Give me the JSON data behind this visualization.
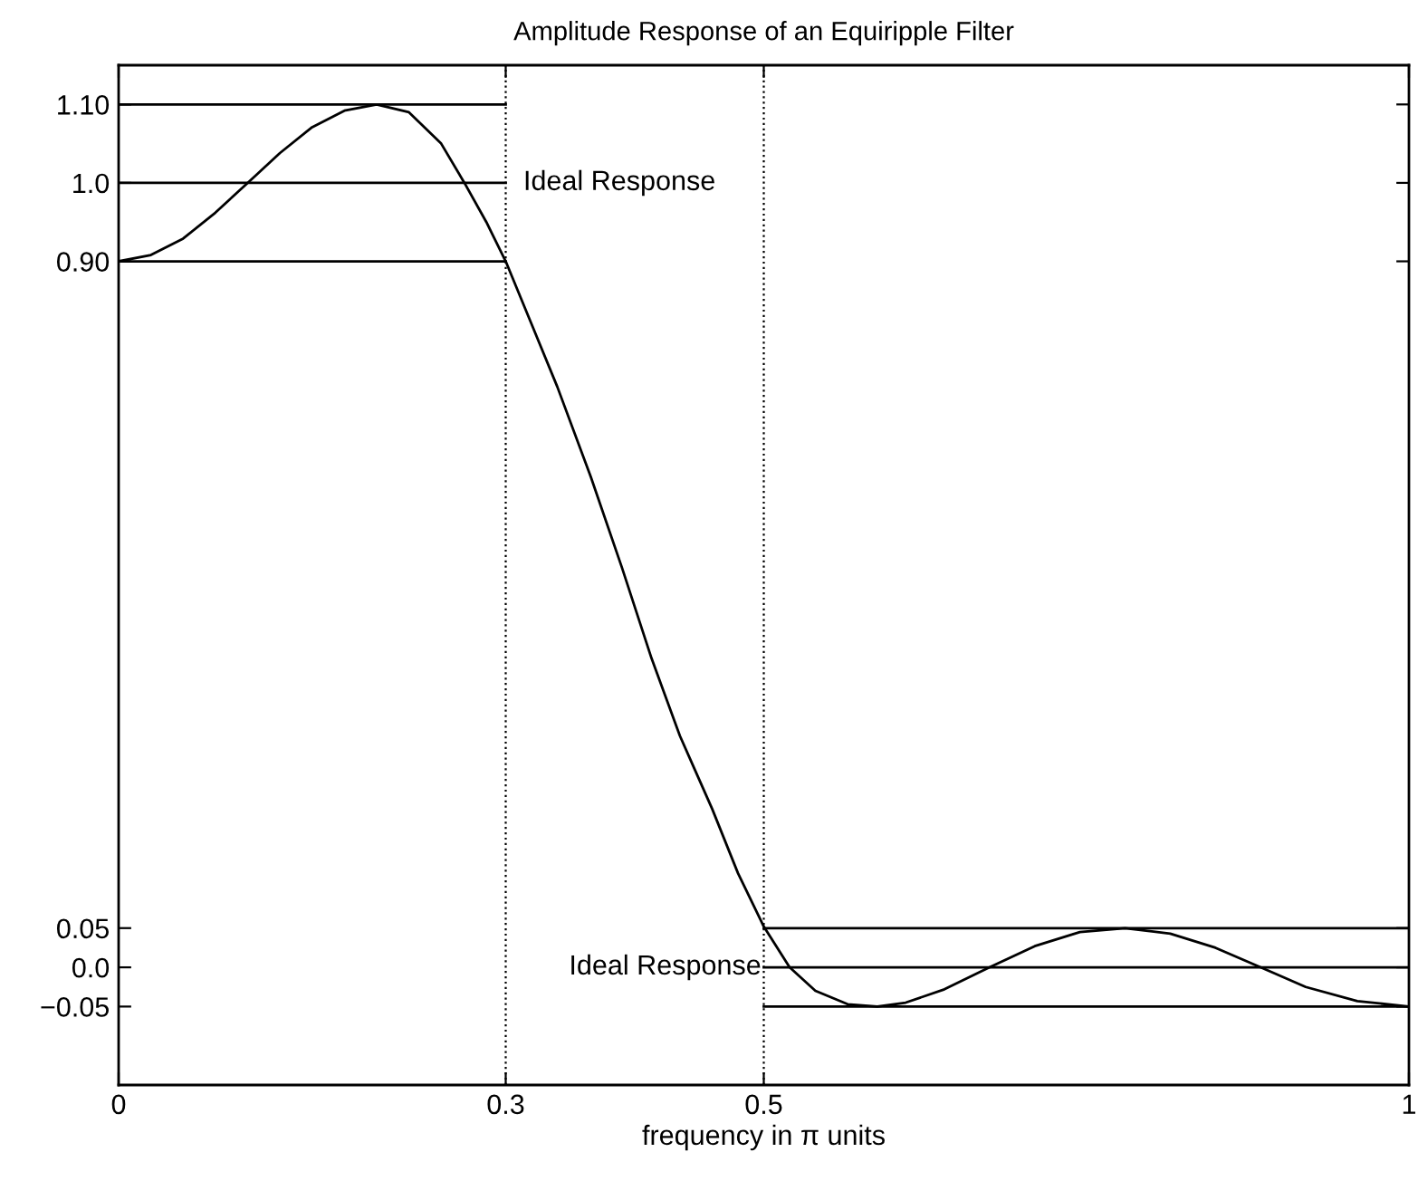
{
  "chart_data": {
    "type": "line",
    "title": "Amplitude Response of an Equiripple Filter",
    "xlabel": "frequency in π units",
    "xlim": [
      0,
      1
    ],
    "ylim": [
      -0.15,
      1.15
    ],
    "xticks": [
      0,
      0.3,
      0.5,
      1
    ],
    "yticks": [
      {
        "value": -0.05,
        "label": "−0.05"
      },
      {
        "value": 0,
        "label": "0.0"
      },
      0.05,
      {
        "value": 0.9,
        "label": "0.90"
      },
      {
        "value": 1.0,
        "label": "1.0"
      },
      {
        "value": 1.1,
        "label": "1.10"
      }
    ],
    "grid": false,
    "legend": false,
    "marker": "none",
    "line_style": "solid",
    "series": [
      {
        "color": "#000000",
        "x": [
          0,
          0.025,
          0.05,
          0.075,
          0.1,
          0.125,
          0.15,
          0.175,
          0.2,
          0.225,
          0.25,
          0.268,
          0.285,
          0.3,
          0.32,
          0.34,
          0.366,
          0.39,
          0.413,
          0.435,
          0.46,
          0.48,
          0.5,
          0.52,
          0.54,
          0.565,
          0.588,
          0.61,
          0.64,
          0.675,
          0.71,
          0.745,
          0.78,
          0.815,
          0.85,
          0.885,
          0.92,
          0.96,
          1.0
        ],
        "values": [
          0.9,
          0.908,
          0.929,
          0.962,
          1.0,
          1.038,
          1.071,
          1.092,
          1.1,
          1.09,
          1.05,
          1.0,
          0.95,
          0.9,
          0.82,
          0.74,
          0.625,
          0.51,
          0.394,
          0.295,
          0.202,
          0.12,
          0.052,
          0.0,
          -0.03,
          -0.047,
          -0.05,
          -0.045,
          -0.028,
          0.0,
          0.027,
          0.045,
          0.05,
          0.043,
          0.025,
          0.0,
          -0.025,
          -0.043,
          -0.05
        ]
      },
      {
        "color": "#000000",
        "x": [
          0,
          0.3
        ],
        "values": [
          1.1,
          1.1
        ]
      },
      {
        "color": "#000000",
        "x": [
          0,
          0.3
        ],
        "values": [
          1.0,
          1.0
        ]
      },
      {
        "color": "#000000",
        "x": [
          0,
          0.3
        ],
        "values": [
          0.9,
          0.9
        ]
      },
      {
        "color": "#000000",
        "x": [
          0.5,
          1
        ],
        "values": [
          0.05,
          0.05
        ]
      },
      {
        "color": "#000000",
        "x": [
          0.5,
          1
        ],
        "values": [
          0.0,
          0.0
        ]
      },
      {
        "color": "#000000",
        "x": [
          0.5,
          1
        ],
        "values": [
          -0.05,
          -0.05
        ]
      }
    ],
    "ref_lines": [
      {
        "axis": "x",
        "value": 0.3,
        "color": "#000000",
        "line_style": "dotted"
      },
      {
        "axis": "x",
        "value": 0.5,
        "color": "#000000",
        "line_style": "dotted"
      }
    ],
    "annotations": [
      {
        "text": "Ideal Response",
        "x": 0.3,
        "y": 1.0
      },
      {
        "text": "Ideal Response",
        "x": 0.5,
        "y": 0.0
      }
    ]
  }
}
